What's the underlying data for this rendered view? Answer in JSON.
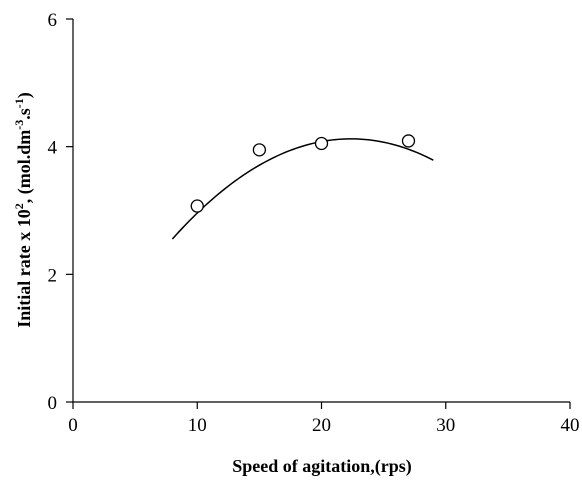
{
  "chart_data": {
    "type": "scatter",
    "title": "",
    "xlabel": "Speed of agitation,(rps)",
    "ylabel": {
      "base": "Initial rate x 10",
      "base_sup": "2",
      "mid": ", (mol.dm",
      "mid_sup": "-3",
      "mid2": ".s",
      "mid2_sup": "-1",
      "end": ")"
    },
    "xlim": [
      0,
      40
    ],
    "ylim": [
      0,
      6
    ],
    "xticks": [
      0,
      10,
      20,
      30,
      40
    ],
    "yticks": [
      0,
      2,
      4,
      6
    ],
    "grid": false,
    "legend": "none",
    "series": [
      {
        "marker": "open-circle",
        "points": [
          {
            "x": 10,
            "y": 3.07
          },
          {
            "x": 15,
            "y": 3.95
          },
          {
            "x": 20,
            "y": 4.05
          },
          {
            "x": 27,
            "y": 4.09
          }
        ]
      }
    ],
    "fit_curve": {
      "type": "polynomial",
      "x_range": [
        8,
        29
      ],
      "coefficients": [
        -0.0076,
        0.34,
        0.32
      ]
    },
    "colors": {
      "line": "#000000",
      "marker_fill": "#ffffff",
      "marker_stroke": "#000000",
      "background": "#ffffff"
    }
  }
}
